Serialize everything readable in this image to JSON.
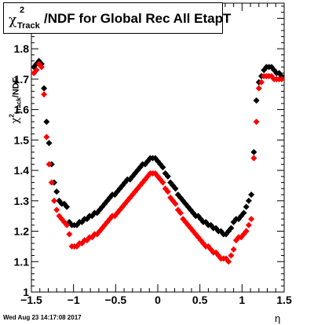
{
  "title": {
    "symbol": "χ",
    "superscript": "2",
    "subscript": "Track",
    "text": "/NDF for Global Rec All EtapT"
  },
  "footer": {
    "date": "Wed Aug 23 14:17:08 2017"
  },
  "chart_data": {
    "type": "scatter",
    "xlabel": "η",
    "ylabel": {
      "symbol": "χ",
      "superscript": "2",
      "subscript": "Track",
      "text": "/NDF"
    },
    "xlim": [
      -1.5,
      1.5
    ],
    "ylim": [
      1.0,
      1.95
    ],
    "xticks": [
      -1.5,
      -1,
      -0.5,
      0,
      0.5,
      1,
      1.5
    ],
    "xtick_labels": [
      "−1.5",
      "−1",
      "−0.5",
      "0",
      "0.5",
      "1",
      "1.5"
    ],
    "yticks": [
      1,
      1.1,
      1.2,
      1.3,
      1.4,
      1.5,
      1.6,
      1.7,
      1.8,
      1.9
    ],
    "ytick_labels": [
      "1",
      "1.1",
      "1.2",
      "1.3",
      "1.4",
      "1.5",
      "1.6",
      "1.7",
      "1.8",
      "1.9"
    ],
    "grid": false,
    "legend": false,
    "series": [
      {
        "color": "#000000",
        "x": [
          -1.47,
          -1.44,
          -1.41,
          -1.38,
          -1.35,
          -1.32,
          -1.29,
          -1.26,
          -1.23,
          -1.2,
          -1.17,
          -1.14,
          -1.11,
          -1.08,
          -1.05,
          -1.02,
          -0.99,
          -0.96,
          -0.93,
          -0.9,
          -0.87,
          -0.84,
          -0.81,
          -0.78,
          -0.75,
          -0.72,
          -0.69,
          -0.66,
          -0.63,
          -0.6,
          -0.57,
          -0.54,
          -0.51,
          -0.48,
          -0.45,
          -0.42,
          -0.39,
          -0.36,
          -0.33,
          -0.3,
          -0.27,
          -0.24,
          -0.21,
          -0.18,
          -0.15,
          -0.12,
          -0.09,
          -0.06,
          -0.03,
          0.0,
          0.03,
          0.06,
          0.09,
          0.12,
          0.15,
          0.18,
          0.21,
          0.24,
          0.27,
          0.3,
          0.33,
          0.36,
          0.39,
          0.42,
          0.45,
          0.48,
          0.51,
          0.54,
          0.57,
          0.6,
          0.63,
          0.66,
          0.69,
          0.72,
          0.75,
          0.78,
          0.81,
          0.84,
          0.87,
          0.9,
          0.93,
          0.96,
          0.99,
          1.02,
          1.05,
          1.08,
          1.11,
          1.14,
          1.17,
          1.2,
          1.23,
          1.26,
          1.29,
          1.32,
          1.35,
          1.38,
          1.41,
          1.44,
          1.47
        ],
        "y": [
          1.74,
          1.75,
          1.76,
          1.75,
          1.67,
          1.56,
          1.49,
          1.42,
          1.36,
          1.33,
          1.3,
          1.29,
          1.29,
          1.28,
          1.23,
          1.22,
          1.22,
          1.22,
          1.23,
          1.23,
          1.24,
          1.24,
          1.25,
          1.25,
          1.26,
          1.26,
          1.27,
          1.28,
          1.29,
          1.3,
          1.31,
          1.32,
          1.32,
          1.33,
          1.34,
          1.35,
          1.36,
          1.37,
          1.37,
          1.38,
          1.39,
          1.4,
          1.41,
          1.42,
          1.42,
          1.43,
          1.44,
          1.44,
          1.44,
          1.43,
          1.42,
          1.41,
          1.39,
          1.38,
          1.36,
          1.35,
          1.34,
          1.32,
          1.31,
          1.3,
          1.29,
          1.28,
          1.27,
          1.26,
          1.25,
          1.25,
          1.24,
          1.23,
          1.23,
          1.22,
          1.22,
          1.21,
          1.21,
          1.2,
          1.2,
          1.19,
          1.19,
          1.2,
          1.21,
          1.23,
          1.24,
          1.24,
          1.25,
          1.26,
          1.28,
          1.3,
          1.32,
          1.46,
          1.63,
          1.69,
          1.71,
          1.73,
          1.74,
          1.74,
          1.74,
          1.73,
          1.72,
          1.72,
          1.71
        ]
      },
      {
        "color": "#ff0000",
        "x": [
          -1.47,
          -1.44,
          -1.41,
          -1.38,
          -1.35,
          -1.32,
          -1.29,
          -1.26,
          -1.23,
          -1.2,
          -1.17,
          -1.14,
          -1.11,
          -1.08,
          -1.05,
          -1.02,
          -0.99,
          -0.96,
          -0.93,
          -0.9,
          -0.87,
          -0.84,
          -0.81,
          -0.78,
          -0.75,
          -0.72,
          -0.69,
          -0.66,
          -0.63,
          -0.6,
          -0.57,
          -0.54,
          -0.51,
          -0.48,
          -0.45,
          -0.42,
          -0.39,
          -0.36,
          -0.33,
          -0.3,
          -0.27,
          -0.24,
          -0.21,
          -0.18,
          -0.15,
          -0.12,
          -0.09,
          -0.06,
          -0.03,
          0.0,
          0.03,
          0.06,
          0.09,
          0.12,
          0.15,
          0.18,
          0.21,
          0.24,
          0.27,
          0.3,
          0.33,
          0.36,
          0.39,
          0.42,
          0.45,
          0.48,
          0.51,
          0.54,
          0.57,
          0.6,
          0.63,
          0.66,
          0.69,
          0.72,
          0.75,
          0.78,
          0.81,
          0.84,
          0.87,
          0.9,
          0.93,
          0.96,
          0.99,
          1.02,
          1.05,
          1.08,
          1.11,
          1.14,
          1.17,
          1.2,
          1.23,
          1.26,
          1.29,
          1.32,
          1.35,
          1.38,
          1.41,
          1.44,
          1.47
        ],
        "y": [
          1.72,
          1.73,
          1.75,
          1.74,
          1.65,
          1.51,
          1.42,
          1.36,
          1.3,
          1.27,
          1.25,
          1.24,
          1.23,
          1.22,
          1.19,
          1.15,
          1.15,
          1.15,
          1.16,
          1.16,
          1.17,
          1.17,
          1.18,
          1.18,
          1.19,
          1.19,
          1.2,
          1.21,
          1.22,
          1.23,
          1.24,
          1.25,
          1.25,
          1.26,
          1.27,
          1.28,
          1.29,
          1.3,
          1.31,
          1.32,
          1.33,
          1.34,
          1.35,
          1.36,
          1.37,
          1.38,
          1.39,
          1.39,
          1.39,
          1.38,
          1.37,
          1.36,
          1.34,
          1.33,
          1.31,
          1.3,
          1.29,
          1.27,
          1.26,
          1.24,
          1.23,
          1.22,
          1.21,
          1.2,
          1.19,
          1.18,
          1.17,
          1.16,
          1.15,
          1.15,
          1.14,
          1.13,
          1.13,
          1.12,
          1.11,
          1.11,
          1.11,
          1.1,
          1.12,
          1.14,
          1.17,
          1.18,
          1.18,
          1.19,
          1.2,
          1.22,
          1.24,
          1.44,
          1.56,
          1.67,
          1.69,
          1.71,
          1.71,
          1.71,
          1.71,
          1.7,
          1.7,
          1.7,
          1.7
        ]
      }
    ]
  }
}
